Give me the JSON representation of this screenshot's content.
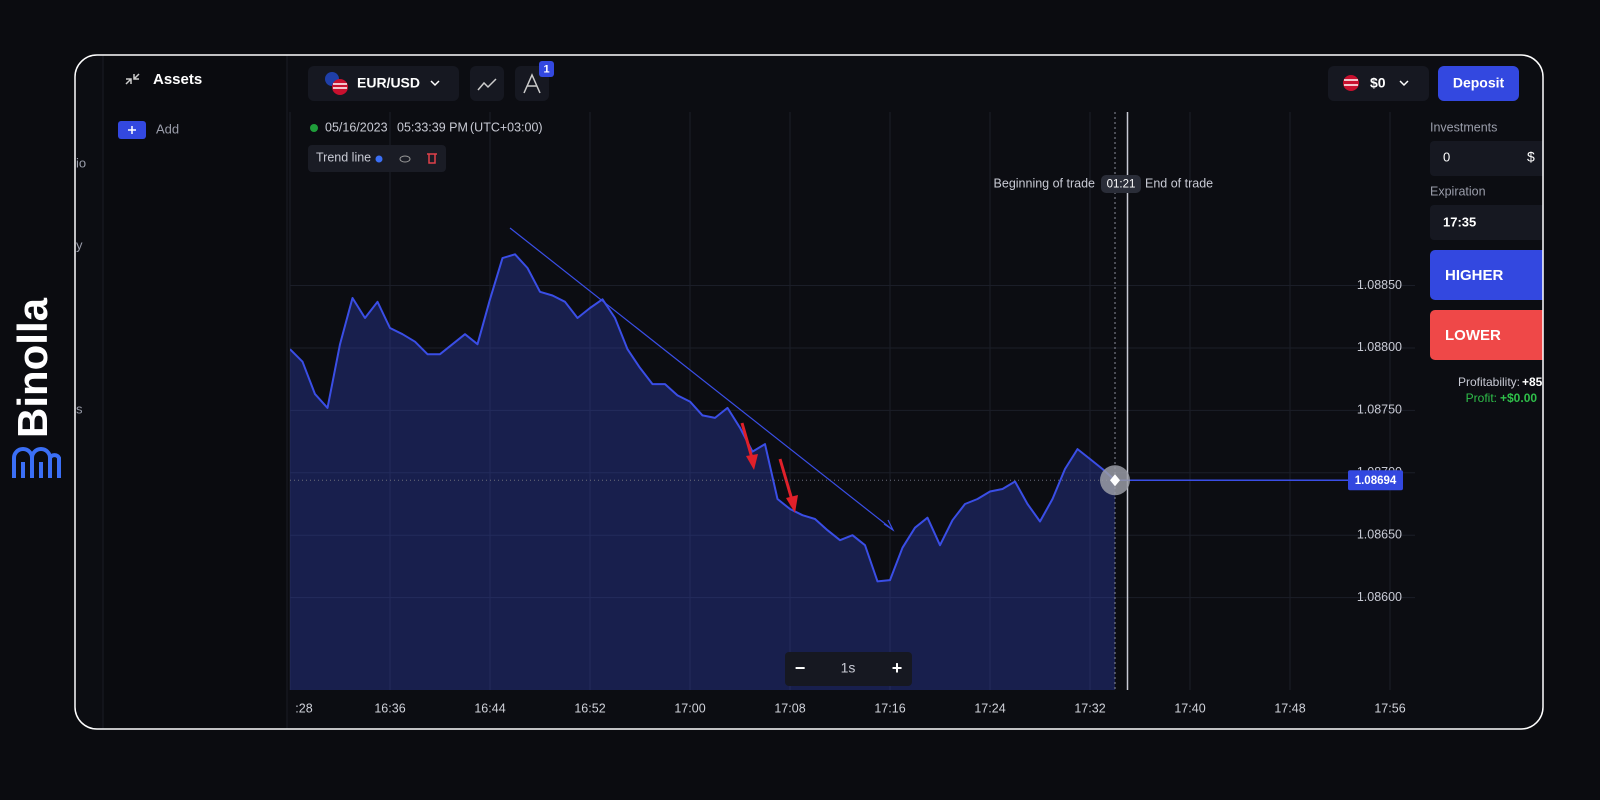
{
  "brand": "Binolla",
  "sidebar": {
    "title": "Assets",
    "add": "Add",
    "fragments": [
      "io",
      "y",
      "s"
    ]
  },
  "topbar": {
    "asset": "EUR/USD",
    "indicator_badge": "1",
    "balance": "$0",
    "deposit": "Deposit"
  },
  "chart_info": {
    "date": "05/16/2023",
    "time": "05:33:39 PM",
    "timezone": "(UTC+03:00)",
    "tool": "Trend line"
  },
  "trade_labels": {
    "begin": "Beginning of trade",
    "timer": "01:21",
    "end": "End of trade"
  },
  "zoom": {
    "minus": "−",
    "step": "1s",
    "plus": "+"
  },
  "panel": {
    "investments_label": "Investments",
    "investment": "0",
    "currency": "$",
    "expiration_label": "Expiration",
    "expiration": "17:35",
    "higher": "HIGHER",
    "lower": "LOWER",
    "profitability_label": "Profitability:",
    "profitability": "+85",
    "profit_label": "Profit:",
    "profit": "+$0.00"
  },
  "chart_data": {
    "type": "area",
    "color": "#3a4ee6",
    "x": [
      "16:28",
      "16:29",
      "16:30",
      "16:31",
      "16:32",
      "16:33",
      "16:34",
      "16:35",
      "16:36",
      "16:37",
      "16:38",
      "16:39",
      "16:40",
      "16:41",
      "16:42",
      "16:43",
      "16:44",
      "16:45",
      "16:46",
      "16:47",
      "16:48",
      "16:49",
      "16:50",
      "16:51",
      "16:52",
      "16:53",
      "16:54",
      "16:55",
      "16:56",
      "16:57",
      "16:58",
      "16:59",
      "17:00",
      "17:01",
      "17:02",
      "17:03",
      "17:04",
      "17:05",
      "17:06",
      "17:07",
      "17:08",
      "17:09",
      "17:10",
      "17:11",
      "17:12",
      "17:13",
      "17:14",
      "17:15",
      "17:16",
      "17:17",
      "17:18",
      "17:19",
      "17:20",
      "17:21",
      "17:22",
      "17:23",
      "17:24",
      "17:25",
      "17:26",
      "17:27",
      "17:28",
      "17:29",
      "17:30",
      "17:31",
      "17:32",
      "17:33",
      "17:34"
    ],
    "values": [
      1.08799,
      1.08789,
      1.08763,
      1.08752,
      1.08803,
      1.0884,
      1.08824,
      1.08837,
      1.08816,
      1.08811,
      1.08805,
      1.08795,
      1.08795,
      1.08803,
      1.08811,
      1.08803,
      1.08839,
      1.08872,
      1.08875,
      1.08864,
      1.08845,
      1.08842,
      1.08837,
      1.08824,
      1.08832,
      1.08839,
      1.08824,
      1.08799,
      1.08784,
      1.08771,
      1.08771,
      1.08762,
      1.08757,
      1.08746,
      1.08744,
      1.08752,
      1.08736,
      1.08717,
      1.08723,
      1.08679,
      1.08671,
      1.08666,
      1.08663,
      1.08654,
      1.08646,
      1.0865,
      1.08642,
      1.08613,
      1.08614,
      1.0864,
      1.08656,
      1.08664,
      1.08642,
      1.08662,
      1.08675,
      1.08679,
      1.08685,
      1.08687,
      1.08693,
      1.08675,
      1.08661,
      1.08679,
      1.08703,
      1.08719,
      1.08711,
      1.08703,
      1.08694
    ],
    "xlim": [
      "16:28",
      "17:58"
    ],
    "xticks": [
      {
        "value": "16:28",
        "label": ":28"
      },
      "16:36",
      "16:44",
      "16:52",
      "17:00",
      "17:08",
      "17:16",
      "17:24",
      "17:32",
      "17:40",
      "17:48",
      "17:56"
    ],
    "ylim": [
      1.08526,
      1.08989
    ],
    "yticks": [
      {
        "value": 1.086,
        "label": "1.08600"
      },
      {
        "value": 1.0865,
        "label": "1.08650"
      },
      {
        "value": 1.087,
        "label": "1.08700"
      },
      {
        "value": 1.0875,
        "label": "1.08750"
      },
      {
        "value": 1.088,
        "label": "1.08800"
      },
      {
        "value": 1.0885,
        "label": "1.08850"
      }
    ],
    "current_price": {
      "value": 1.08694,
      "label": "1.08694"
    },
    "grid": true
  }
}
